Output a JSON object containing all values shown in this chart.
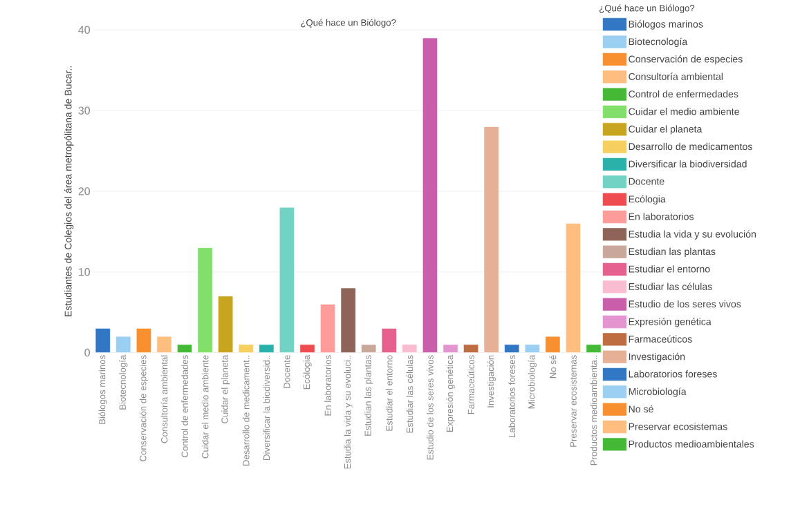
{
  "chart_data": {
    "type": "bar",
    "title": "¿Qué hace un Biólogo?",
    "ylabel": "Estudiantes de Colegios del área metropólitana de Bucar..",
    "legend_title": "¿Qué hace un Biólogo?",
    "legend": "right",
    "grid": "y",
    "categories": [
      "Biólogos marinos",
      "Biotecnología",
      "Conservación de especies",
      "Consultoría ambiental",
      "Control de enfermedades",
      "Cuidar el medio ambiente",
      "Cuidar el planeta",
      "Desarrollo de medicament..",
      "Diversificar la biodiversid..",
      "Docente",
      "Ecólogia",
      "En laboratorios",
      "Estudia la vida y su evoluci..",
      "Estudian las plantas",
      "Estudiar el entorno",
      "Estudiar las células",
      "Estudio de los seres vivos",
      "Expresión genética",
      "Farmaceúticos",
      "Investigación",
      "Laboratorios foreses",
      "Microbiología",
      "No sé",
      "Preservar ecosistemas",
      "Productos medioambienta.."
    ],
    "series": [
      {
        "name": "Biólogos marinos",
        "color": "#3277c3",
        "values": [
          3,
          null,
          null,
          null,
          null,
          null,
          null,
          null,
          null,
          null,
          null,
          null,
          null,
          null,
          null,
          null,
          null,
          null,
          null,
          null,
          null,
          null,
          null,
          null,
          null
        ]
      },
      {
        "name": "Biotecnología",
        "color": "#9bcff2",
        "values": [
          null,
          2,
          null,
          null,
          null,
          null,
          null,
          null,
          null,
          null,
          null,
          null,
          null,
          null,
          null,
          null,
          null,
          null,
          null,
          null,
          null,
          null,
          null,
          null,
          null
        ]
      },
      {
        "name": "Conservación de especies",
        "color": "#f89030",
        "values": [
          null,
          null,
          3,
          null,
          null,
          null,
          null,
          null,
          null,
          null,
          null,
          null,
          null,
          null,
          null,
          null,
          null,
          null,
          null,
          null,
          null,
          null,
          null,
          null,
          null
        ]
      },
      {
        "name": "Consultoría ambiental",
        "color": "#fdbe80",
        "values": [
          null,
          null,
          null,
          2,
          null,
          null,
          null,
          null,
          null,
          null,
          null,
          null,
          null,
          null,
          null,
          null,
          null,
          null,
          null,
          null,
          null,
          null,
          null,
          null,
          null
        ]
      },
      {
        "name": "Control de enfermedades",
        "color": "#44b935",
        "values": [
          null,
          null,
          null,
          null,
          1,
          null,
          null,
          null,
          null,
          null,
          null,
          null,
          null,
          null,
          null,
          null,
          null,
          null,
          null,
          null,
          null,
          null,
          null,
          null,
          null
        ]
      },
      {
        "name": "Cuidar el medio ambiente",
        "color": "#82e06a",
        "values": [
          null,
          null,
          null,
          null,
          null,
          13,
          null,
          null,
          null,
          null,
          null,
          null,
          null,
          null,
          null,
          null,
          null,
          null,
          null,
          null,
          null,
          null,
          null,
          null,
          null
        ]
      },
      {
        "name": "Cuidar el planeta",
        "color": "#c8a51e",
        "values": [
          null,
          null,
          null,
          null,
          null,
          null,
          7,
          null,
          null,
          null,
          null,
          null,
          null,
          null,
          null,
          null,
          null,
          null,
          null,
          null,
          null,
          null,
          null,
          null,
          null
        ]
      },
      {
        "name": "Desarrollo de medicamentos",
        "color": "#f6d05e",
        "values": [
          null,
          null,
          null,
          null,
          null,
          null,
          null,
          1,
          null,
          null,
          null,
          null,
          null,
          null,
          null,
          null,
          null,
          null,
          null,
          null,
          null,
          null,
          null,
          null,
          null
        ]
      },
      {
        "name": "Diversificar la biodiversidad",
        "color": "#2ab1aa",
        "values": [
          null,
          null,
          null,
          null,
          null,
          null,
          null,
          null,
          1,
          null,
          null,
          null,
          null,
          null,
          null,
          null,
          null,
          null,
          null,
          null,
          null,
          null,
          null,
          null,
          null
        ]
      },
      {
        "name": "Docente",
        "color": "#72d3c5",
        "values": [
          null,
          null,
          null,
          null,
          null,
          null,
          null,
          null,
          null,
          18,
          null,
          null,
          null,
          null,
          null,
          null,
          null,
          null,
          null,
          null,
          null,
          null,
          null,
          null,
          null
        ]
      },
      {
        "name": "Ecólogia",
        "color": "#ef4c51",
        "values": [
          null,
          null,
          null,
          null,
          null,
          null,
          null,
          null,
          null,
          null,
          1,
          null,
          null,
          null,
          null,
          null,
          null,
          null,
          null,
          null,
          null,
          null,
          null,
          null,
          null
        ]
      },
      {
        "name": "En laboratorios",
        "color": "#fe9c99",
        "values": [
          null,
          null,
          null,
          null,
          null,
          null,
          null,
          null,
          null,
          null,
          null,
          6,
          null,
          null,
          null,
          null,
          null,
          null,
          null,
          null,
          null,
          null,
          null,
          null,
          null
        ]
      },
      {
        "name": "Estudia la vida y su evolución",
        "color": "#8e6358",
        "values": [
          null,
          null,
          null,
          null,
          null,
          null,
          null,
          null,
          null,
          null,
          null,
          null,
          8,
          null,
          null,
          null,
          null,
          null,
          null,
          null,
          null,
          null,
          null,
          null,
          null
        ]
      },
      {
        "name": "Estudian las plantas",
        "color": "#c9a89b",
        "values": [
          null,
          null,
          null,
          null,
          null,
          null,
          null,
          null,
          null,
          null,
          null,
          null,
          null,
          1,
          null,
          null,
          null,
          null,
          null,
          null,
          null,
          null,
          null,
          null,
          null
        ]
      },
      {
        "name": "Estudiar el entorno",
        "color": "#e5608e",
        "values": [
          null,
          null,
          null,
          null,
          null,
          null,
          null,
          null,
          null,
          null,
          null,
          null,
          null,
          null,
          3,
          null,
          null,
          null,
          null,
          null,
          null,
          null,
          null,
          null,
          null
        ]
      },
      {
        "name": "Estudiar las células",
        "color": "#fabcd1",
        "values": [
          null,
          null,
          null,
          null,
          null,
          null,
          null,
          null,
          null,
          null,
          null,
          null,
          null,
          null,
          null,
          1,
          null,
          null,
          null,
          null,
          null,
          null,
          null,
          null,
          null
        ]
      },
      {
        "name": "Estudio de los seres vivos",
        "color": "#c95fab",
        "values": [
          null,
          null,
          null,
          null,
          null,
          null,
          null,
          null,
          null,
          null,
          null,
          null,
          null,
          null,
          null,
          null,
          39,
          null,
          null,
          null,
          null,
          null,
          null,
          null,
          null
        ]
      },
      {
        "name": "Expresión genética",
        "color": "#e495cf",
        "values": [
          null,
          null,
          null,
          null,
          null,
          null,
          null,
          null,
          null,
          null,
          null,
          null,
          null,
          null,
          null,
          null,
          null,
          1,
          null,
          null,
          null,
          null,
          null,
          null,
          null
        ]
      },
      {
        "name": "Farmaceúticos",
        "color": "#be6c41",
        "values": [
          null,
          null,
          null,
          null,
          null,
          null,
          null,
          null,
          null,
          null,
          null,
          null,
          null,
          null,
          null,
          null,
          null,
          null,
          1,
          null,
          null,
          null,
          null,
          null,
          null
        ]
      },
      {
        "name": "Investigación",
        "color": "#e6b097",
        "values": [
          null,
          null,
          null,
          null,
          null,
          null,
          null,
          null,
          null,
          null,
          null,
          null,
          null,
          null,
          null,
          null,
          null,
          null,
          null,
          28,
          null,
          null,
          null,
          null,
          null
        ]
      },
      {
        "name": "Laboratorios foreses",
        "color": "#3277c3",
        "values": [
          null,
          null,
          null,
          null,
          null,
          null,
          null,
          null,
          null,
          null,
          null,
          null,
          null,
          null,
          null,
          null,
          null,
          null,
          null,
          null,
          1,
          null,
          null,
          null,
          null
        ]
      },
      {
        "name": "Microbiología",
        "color": "#9bcff2",
        "values": [
          null,
          null,
          null,
          null,
          null,
          null,
          null,
          null,
          null,
          null,
          null,
          null,
          null,
          null,
          null,
          null,
          null,
          null,
          null,
          null,
          null,
          1,
          null,
          null,
          null
        ]
      },
      {
        "name": "No sé",
        "color": "#f89030",
        "values": [
          null,
          null,
          null,
          null,
          null,
          null,
          null,
          null,
          null,
          null,
          null,
          null,
          null,
          null,
          null,
          null,
          null,
          null,
          null,
          null,
          null,
          null,
          2,
          null,
          null
        ]
      },
      {
        "name": "Preservar ecosistemas",
        "color": "#fdbe80",
        "values": [
          null,
          null,
          null,
          null,
          null,
          null,
          null,
          null,
          null,
          null,
          null,
          null,
          null,
          null,
          null,
          null,
          null,
          null,
          null,
          null,
          null,
          null,
          null,
          16,
          null
        ]
      },
      {
        "name": "Productos medioambientales",
        "color": "#44b935",
        "values": [
          null,
          null,
          null,
          null,
          null,
          null,
          null,
          null,
          null,
          null,
          null,
          null,
          null,
          null,
          null,
          null,
          null,
          null,
          null,
          null,
          null,
          null,
          null,
          null,
          1
        ]
      }
    ],
    "ylim": [
      0,
      40
    ],
    "yticks": [
      0,
      10,
      20,
      30,
      40
    ]
  }
}
